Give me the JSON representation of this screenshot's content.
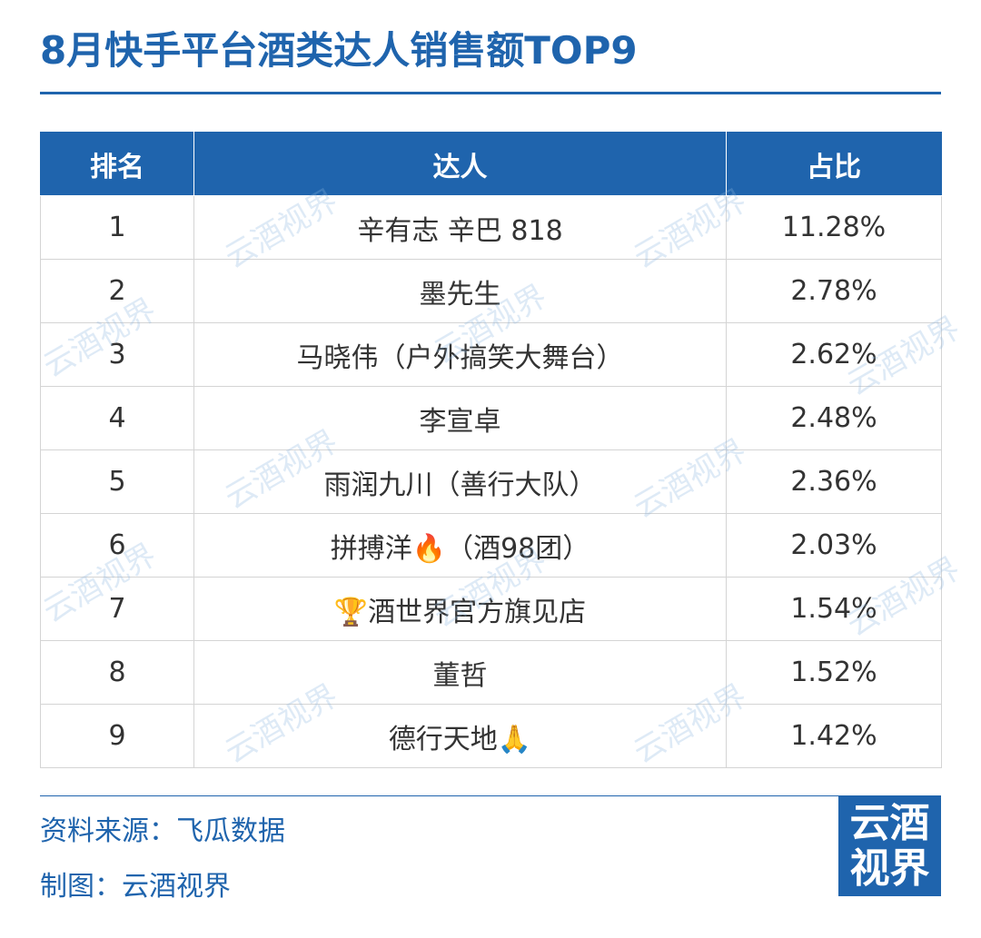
{
  "title": "8月快手平台酒类达人销售额TOP9",
  "chart_data": {
    "type": "table",
    "title": "8月快手平台酒类达人销售额TOP9",
    "columns": [
      "排名",
      "达人",
      "占比"
    ],
    "rows": [
      {
        "rank": "1",
        "name": "辛有志 辛巴 818",
        "share": "11.28%"
      },
      {
        "rank": "2",
        "name": "墨先生",
        "share": "2.78%"
      },
      {
        "rank": "3",
        "name": "马晓伟（户外搞笑大舞台）",
        "share": "2.62%"
      },
      {
        "rank": "4",
        "name": "李宣卓",
        "share": "2.48%"
      },
      {
        "rank": "5",
        "name": "雨润九川（善行大队）",
        "share": "2.36%"
      },
      {
        "rank": "6",
        "name": "拼搏洋🔥（酒98团）",
        "share": "2.03%"
      },
      {
        "rank": "7",
        "name": "🏆酒世界官方旗见店",
        "share": "1.54%"
      },
      {
        "rank": "8",
        "name": "董哲",
        "share": "1.52%"
      },
      {
        "rank": "9",
        "name": "德行天地🙏",
        "share": "1.42%"
      }
    ]
  },
  "footer": {
    "source": "资料来源：飞瓜数据",
    "maker": "制图：云酒视界"
  },
  "logo": {
    "line1": "云酒",
    "line2": "视界"
  },
  "watermark": "云酒视界",
  "colors": {
    "primary": "#1f64ad",
    "header_text": "#ffffff",
    "body_text": "#333333",
    "grid": "#d4d4d4"
  }
}
